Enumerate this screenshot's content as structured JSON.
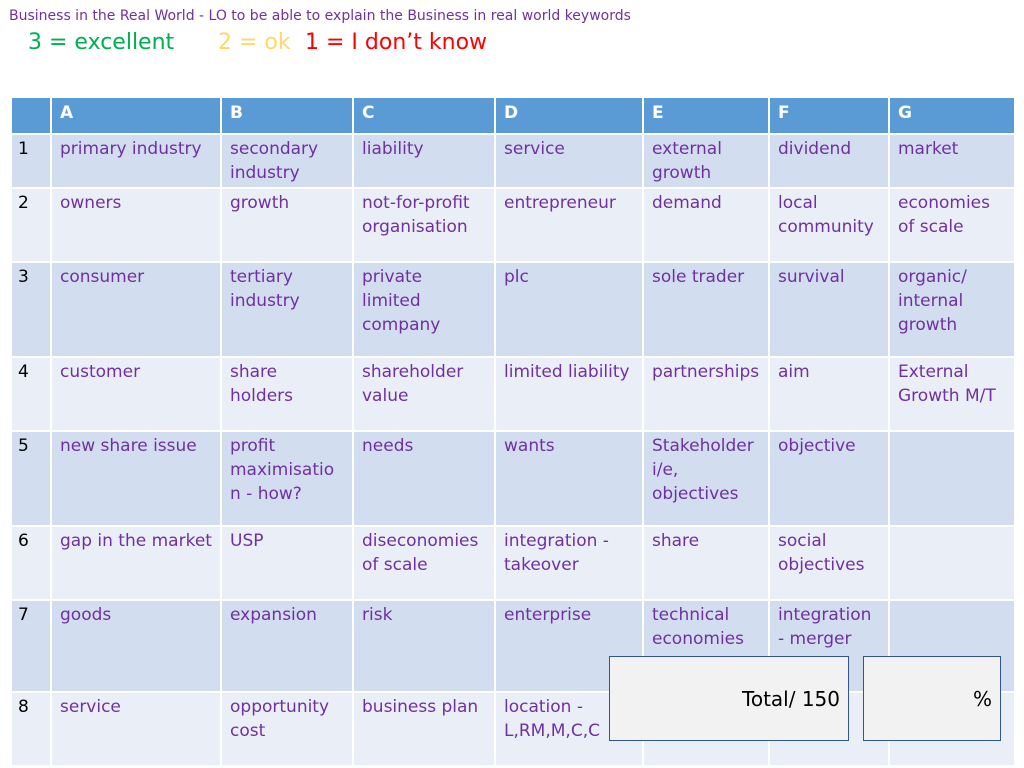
{
  "title": "Business in the Real World - LO to be able to explain the Business in real world keywords",
  "legend": {
    "excellent": "3 = excellent",
    "ok": "2 = ok",
    "dont_know": "1 = I don’t know"
  },
  "table": {
    "headers": [
      "",
      "A",
      "B",
      "C",
      "D",
      "E",
      "F",
      "G"
    ],
    "rows": [
      {
        "num": "1",
        "cells": [
          "primary industry",
          "secondary industry",
          "liability",
          "service",
          "external growth",
          "dividend",
          "market"
        ]
      },
      {
        "num": "2",
        "cells": [
          "owners",
          "growth",
          "not-for-profit organisation",
          "entrepreneur",
          "demand",
          "local community",
          "economies of scale"
        ]
      },
      {
        "num": "3",
        "cells": [
          "consumer",
          "tertiary industry",
          "private limited company",
          "plc",
          "sole trader",
          "survival",
          "organic/ internal growth"
        ]
      },
      {
        "num": "4",
        "cells": [
          "customer",
          "share holders",
          "shareholder value",
          "limited liability",
          "partnerships",
          "aim",
          "External Growth M/T"
        ]
      },
      {
        "num": "5",
        "cells": [
          "new share issue",
          "profit maximisation - how?",
          "needs",
          "wants",
          "Stakeholder i/e, objectives",
          "objective",
          ""
        ]
      },
      {
        "num": "6",
        "cells": [
          "gap in the market",
          "USP",
          "diseconomies of scale",
          "integration - takeover",
          "share",
          "social objectives",
          ""
        ]
      },
      {
        "num": "7",
        "cells": [
          "goods",
          "expansion",
          "risk",
          "enterprise",
          "technical economies",
          "integration - merger",
          ""
        ]
      },
      {
        "num": "8",
        "cells": [
          "service",
          "opportunity cost",
          "business plan",
          "location - L,RM,M,C,C",
          "",
          "",
          ""
        ]
      }
    ]
  },
  "total_box": "Total/ 150",
  "percent_box": "%"
}
